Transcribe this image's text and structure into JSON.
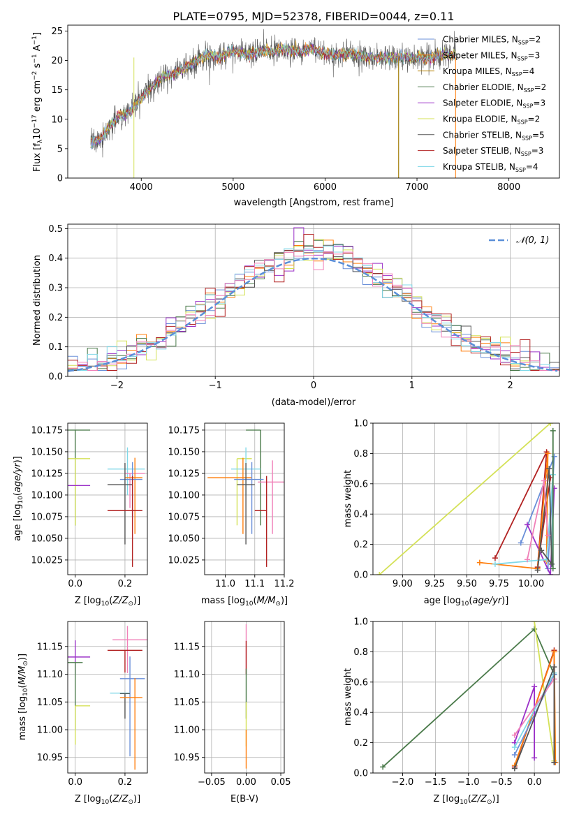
{
  "figure_title": "PLATE=0795, MJD=52378, FIBERID=0044, z=0.11",
  "colors": {
    "Chabrier MILES": "#6a8fd8",
    "Salpeter MILES": "#ff7f0e",
    "Kroupa MILES": "#b8860b",
    "Chabrier ELODIE": "#4a7a4a",
    "Salpeter ELODIE": "#9b30c8",
    "Kroupa ELODIE": "#d4e157",
    "Chabrier STELIB": "#555555",
    "Salpeter STELIB": "#b22222",
    "Kroupa STELIB": "#80d8e8",
    "pink": "#f080b8"
  },
  "chart_data": [
    {
      "id": "spectrum",
      "type": "line",
      "xlabel": "wavelength [Angstrom, rest frame]",
      "ylabel": "Flux [f",
      "xlim": [
        3200,
        8550
      ],
      "ylim": [
        0,
        26
      ],
      "xticks": [
        4000,
        5000,
        6000,
        7000,
        8000
      ],
      "yticks": [
        0,
        5,
        10,
        15,
        20,
        25
      ],
      "grid": false,
      "legend_position": "top-right",
      "continuum": [
        [
          3450,
          6
        ],
        [
          3550,
          6.5
        ],
        [
          3650,
          8.5
        ],
        [
          3750,
          10.5
        ],
        [
          3850,
          11
        ],
        [
          3950,
          12.5
        ],
        [
          4050,
          14.5
        ],
        [
          4150,
          16
        ],
        [
          4250,
          17.5
        ],
        [
          4350,
          17.5
        ],
        [
          4450,
          18.5
        ],
        [
          4550,
          19.5
        ],
        [
          4650,
          20.5
        ],
        [
          4750,
          21
        ],
        [
          4850,
          20.5
        ],
        [
          4950,
          21.5
        ],
        [
          5050,
          21.5
        ],
        [
          5150,
          21
        ],
        [
          5250,
          21.5
        ],
        [
          5350,
          21.5
        ],
        [
          5450,
          21.5
        ],
        [
          5550,
          22
        ],
        [
          5650,
          21.5
        ],
        [
          5750,
          21.5
        ],
        [
          5850,
          22
        ],
        [
          5950,
          21.5
        ],
        [
          6050,
          21
        ],
        [
          6150,
          21
        ],
        [
          6250,
          21
        ],
        [
          6350,
          21
        ],
        [
          6450,
          20.5
        ],
        [
          6550,
          20.5
        ],
        [
          6650,
          20.5
        ],
        [
          6750,
          20.5
        ],
        [
          6850,
          20.5
        ],
        [
          6950,
          20.5
        ],
        [
          7050,
          20.5
        ],
        [
          7150,
          20.5
        ],
        [
          7250,
          21
        ],
        [
          7350,
          21
        ],
        [
          7420,
          21
        ]
      ],
      "series": [
        {
          "name": "Chabrier MILES, N",
          "sub": "SSP",
          "suffix": "=2"
        },
        {
          "name": "Salpeter MILES, N",
          "sub": "SSP",
          "suffix": "=3"
        },
        {
          "name": "Kroupa MILES, N",
          "sub": "SSP",
          "suffix": "=4"
        },
        {
          "name": "Chabrier ELODIE, N",
          "sub": "SSP",
          "suffix": "=2"
        },
        {
          "name": "Salpeter ELODIE, N",
          "sub": "SSP",
          "suffix": "=3"
        },
        {
          "name": "Kroupa ELODIE, N",
          "sub": "SSP",
          "suffix": "=2"
        },
        {
          "name": "Chabrier STELIB, N",
          "sub": "SSP",
          "suffix": "=5"
        },
        {
          "name": "Salpeter STELIB, N",
          "sub": "SSP",
          "suffix": "=3"
        },
        {
          "name": "Kroupa STELIB, N",
          "sub": "SSP",
          "suffix": "=4"
        }
      ],
      "drops": [
        [
          3920,
          "Kroupa ELODIE"
        ],
        [
          6800,
          "Chabrier ELODIE"
        ],
        [
          6800,
          "Kroupa MILES"
        ],
        [
          7420,
          "Salpeter MILES"
        ]
      ]
    },
    {
      "id": "residuals",
      "type": "histogram",
      "xlabel": "(data-model)/error",
      "ylabel": "Normed distribution",
      "xlim": [
        -2.5,
        2.5
      ],
      "ylim": [
        0,
        0.515
      ],
      "xticks": [
        -2,
        -1,
        0,
        1,
        2
      ],
      "yticks": [
        0.0,
        0.1,
        0.2,
        0.3,
        0.4,
        0.5
      ],
      "grid": true,
      "legend": "𝒩(0, 1)",
      "legend_position": "top-right"
    },
    {
      "id": "age-vs-Z",
      "type": "scatter",
      "xlabel": "Z [log",
      "ylabel": "age  [log",
      "xlim": [
        -0.03,
        0.29
      ],
      "ylim": [
        10.008,
        10.183
      ],
      "xticks": [
        0.0,
        0.2
      ],
      "yticks": [
        10.025,
        10.05,
        10.075,
        10.1,
        10.125,
        10.15,
        10.175
      ],
      "grid": true,
      "points": [
        {
          "c": "Chabrier ELODIE",
          "x": 0.0,
          "y": 10.175,
          "xm": 0.03,
          "xp": 0.06,
          "yn": 0.11,
          "yp": 0.0
        },
        {
          "c": "Kroupa ELODIE",
          "x": 0.0,
          "y": 10.142,
          "xm": 0.03,
          "xp": 0.06,
          "yn": 0.077,
          "yp": 0.0
        },
        {
          "c": "Salpeter ELODIE",
          "x": 0.0,
          "y": 10.111,
          "xm": 0.03,
          "xp": 0.06,
          "yn": 0.0,
          "yp": 0.0
        },
        {
          "c": "Kroupa STELIB",
          "x": 0.21,
          "y": 10.13,
          "xm": 0.08,
          "xp": 0.07,
          "yn": 0.03,
          "yp": 0.025
        },
        {
          "c": "pink",
          "x": 0.22,
          "y": 10.125,
          "xm": 0.02,
          "xp": 0.06,
          "yn": 0.04,
          "yp": 0.0
        },
        {
          "c": "Salpeter MILES",
          "x": 0.24,
          "y": 10.12,
          "xm": 0.04,
          "xp": 0.03,
          "yn": 0.065,
          "yp": 0.023
        },
        {
          "c": "Chabrier MILES",
          "x": 0.23,
          "y": 10.118,
          "xm": 0.05,
          "xp": 0.04,
          "yn": 0.043,
          "yp": 0.02
        },
        {
          "c": "Chabrier STELIB",
          "x": 0.2,
          "y": 10.112,
          "xm": 0.07,
          "xp": 0.03,
          "yn": 0.069,
          "yp": 0.025
        },
        {
          "c": "Salpeter STELIB",
          "x": 0.23,
          "y": 10.082,
          "xm": 0.1,
          "xp": 0.04,
          "yn": 0.065,
          "yp": 0.04
        }
      ]
    },
    {
      "id": "age-vs-mass",
      "type": "scatter",
      "xlabel": "mass [log",
      "ylabel": "",
      "xlim": [
        10.93,
        11.2
      ],
      "ylim": [
        10.008,
        10.183
      ],
      "xticks": [
        11.0,
        11.1,
        11.2
      ],
      "yticks": [
        10.025,
        10.05,
        10.075,
        10.1,
        10.125,
        10.15,
        10.175
      ],
      "grid": true,
      "points": [
        {
          "c": "Chabrier ELODIE",
          "x": 11.12,
          "y": 10.175,
          "xm": 0.05,
          "xp": 0.0,
          "yn": 0.11,
          "yp": 0.0
        },
        {
          "c": "Kroupa ELODIE",
          "x": 11.04,
          "y": 10.142,
          "xm": 0.0,
          "xp": 0.05,
          "yn": 0.077,
          "yp": 0.0
        },
        {
          "c": "Salpeter ELODIE",
          "x": 11.13,
          "y": 10.111,
          "xm": 0.0,
          "xp": 0.0,
          "yn": 0.0,
          "yp": 0.0
        },
        {
          "c": "Kroupa STELIB",
          "x": 11.07,
          "y": 10.13,
          "xm": 0.05,
          "xp": 0.05,
          "yn": 0.03,
          "yp": 0.025
        },
        {
          "c": "pink",
          "x": 11.16,
          "y": 10.115,
          "xm": 0.05,
          "xp": 0.05,
          "yn": 0.06,
          "yp": 0.025
        },
        {
          "c": "Salpeter MILES",
          "x": 11.06,
          "y": 10.12,
          "xm": 0.12,
          "xp": 0.03,
          "yn": 0.065,
          "yp": 0.023
        },
        {
          "c": "Chabrier MILES",
          "x": 11.09,
          "y": 10.118,
          "xm": 0.06,
          "xp": 0.04,
          "yn": 0.063,
          "yp": 0.02
        },
        {
          "c": "Chabrier STELIB",
          "x": 11.07,
          "y": 10.112,
          "xm": 0.03,
          "xp": 0.03,
          "yn": 0.069,
          "yp": 0.025
        },
        {
          "c": "Salpeter STELIB",
          "x": 11.14,
          "y": 10.082,
          "xm": 0.04,
          "xp": 0.0,
          "yn": 0.065,
          "yp": 0.04
        }
      ]
    },
    {
      "id": "massweight-vs-age",
      "type": "line",
      "xlabel": "age  [log",
      "ylabel": "mass weight",
      "xlim": [
        8.77,
        10.22
      ],
      "ylim": [
        0,
        1.0
      ],
      "xticks": [
        9.0,
        9.25,
        9.5,
        9.75,
        10.0
      ],
      "yticks": [
        0.0,
        0.2,
        0.4,
        0.6,
        0.8,
        1.0
      ],
      "grid": true,
      "series": [
        {
          "c": "Kroupa ELODIE",
          "x": [
            8.82,
            10.15
          ],
          "y": [
            0.0,
            1.0
          ]
        },
        {
          "c": "Salpeter STELIB",
          "x": [
            9.72,
            10.12,
            10.05,
            10.15
          ],
          "y": [
            0.11,
            0.81,
            0.05,
            0.64
          ]
        },
        {
          "c": "Chabrier MILES",
          "x": [
            9.92,
            10.18,
            10.13
          ],
          "y": [
            0.21,
            0.78,
            0.04
          ]
        },
        {
          "c": "Salpeter ELODIE",
          "x": [
            9.97,
            10.15,
            10.18
          ],
          "y": [
            0.33,
            0.0,
            0.57
          ]
        },
        {
          "c": "Salpeter MILES",
          "x": [
            9.6,
            10.05,
            10.13,
            10.12
          ],
          "y": [
            0.08,
            0.04,
            0.8,
            0.09
          ]
        },
        {
          "c": "Kroupa STELIB",
          "x": [
            9.72,
            10.12,
            10.17,
            10.16
          ],
          "y": [
            0.07,
            0.1,
            0.66,
            0.07
          ]
        },
        {
          "c": "Chabrier ELODIE",
          "x": [
            10.17,
            10.17
          ],
          "y": [
            0.95,
            0.04
          ]
        },
        {
          "c": "Chabrier STELIB",
          "x": [
            10.05,
            10.14,
            10.16,
            10.08
          ],
          "y": [
            0.03,
            0.7,
            0.07,
            0.16
          ]
        },
        {
          "c": "pink",
          "x": [
            9.97,
            10.1,
            10.13
          ],
          "y": [
            0.1,
            0.62,
            0.26
          ]
        }
      ]
    },
    {
      "id": "mass-vs-Z",
      "type": "scatter",
      "xlabel": "Z [log",
      "ylabel": "mass [log",
      "xlim": [
        -0.03,
        0.29
      ],
      "ylim": [
        10.922,
        11.195
      ],
      "xticks": [
        0.0,
        0.2
      ],
      "yticks": [
        10.95,
        11.0,
        11.05,
        11.1,
        11.15
      ],
      "grid": true,
      "points": [
        {
          "c": "Salpeter ELODIE",
          "x": 0.0,
          "y": 11.131,
          "xm": 0.03,
          "xp": 0.06,
          "yn": 0.03,
          "yp": 0.03
        },
        {
          "c": "Chabrier ELODIE",
          "x": 0.0,
          "y": 11.121,
          "xm": 0.03,
          "xp": 0.03,
          "yn": 0.12,
          "yp": 0.0
        },
        {
          "c": "Kroupa ELODIE",
          "x": 0.0,
          "y": 11.043,
          "xm": 0.0,
          "xp": 0.06,
          "yn": 0.07,
          "yp": 0.0
        },
        {
          "c": "pink",
          "x": 0.21,
          "y": 11.162,
          "xm": 0.06,
          "xp": 0.08,
          "yn": 0.06,
          "yp": 0.025
        },
        {
          "c": "Salpeter STELIB",
          "x": 0.2,
          "y": 11.143,
          "xm": 0.07,
          "xp": 0.07,
          "yn": 0.04,
          "yp": 0.0
        },
        {
          "c": "Chabrier MILES",
          "x": 0.22,
          "y": 11.092,
          "xm": 0.04,
          "xp": 0.06,
          "yn": 0.14,
          "yp": 0.04
        },
        {
          "c": "Kroupa STELIB",
          "x": 0.2,
          "y": 11.066,
          "xm": 0.06,
          "xp": 0.02,
          "yn": 0.0,
          "yp": 0.0
        },
        {
          "c": "Chabrier STELIB",
          "x": 0.2,
          "y": 11.065,
          "xm": 0.02,
          "xp": 0.02,
          "yn": 0.045,
          "yp": 0.0
        },
        {
          "c": "Salpeter MILES",
          "x": 0.24,
          "y": 11.058,
          "xm": 0.06,
          "xp": 0.03,
          "yn": 0.13,
          "yp": 0.035
        }
      ]
    },
    {
      "id": "mass-vs-EBV",
      "type": "scatter",
      "xlabel": "E(B-V)",
      "ylabel": "",
      "xlim": [
        -0.06,
        0.055
      ],
      "ylim": [
        10.922,
        11.195
      ],
      "xticks": [
        -0.05,
        0.0,
        0.05
      ],
      "yticks": [
        10.95,
        11.0,
        11.05,
        11.1,
        11.15
      ],
      "grid": true,
      "points": [
        {
          "c": "pink",
          "x": 0.0,
          "y": 11.19,
          "xm": 0,
          "xp": 0,
          "yn": 0.09,
          "yp": 0.0
        },
        {
          "c": "Salpeter STELIB",
          "x": 0.0,
          "y": 11.16,
          "xm": 0,
          "xp": 0,
          "yn": 0.06,
          "yp": 0.0
        },
        {
          "c": "Chabrier ELODIE",
          "x": 0.0,
          "y": 11.11,
          "xm": 0,
          "xp": 0,
          "yn": 0.09,
          "yp": 0.0
        },
        {
          "c": "Kroupa ELODIE",
          "x": 0.0,
          "y": 11.05,
          "xm": 0,
          "xp": 0,
          "yn": 0.08,
          "yp": 0.0
        },
        {
          "c": "Salpeter MILES",
          "x": 0.0,
          "y": 11.0,
          "xm": 0,
          "xp": 0,
          "yn": 0.07,
          "yp": 0.0
        }
      ]
    },
    {
      "id": "massweight-vs-Z",
      "type": "line",
      "xlabel": "Z [log",
      "ylabel": "mass weight",
      "xlim": [
        -2.45,
        0.38
      ],
      "ylim": [
        0,
        1.0
      ],
      "xticks": [
        -2.0,
        -1.5,
        -1.0,
        -0.5,
        0.0
      ],
      "yticks": [
        0.0,
        0.2,
        0.4,
        0.6,
        0.8,
        1.0
      ],
      "grid": true,
      "series": [
        {
          "c": "Chabrier ELODIE",
          "x": [
            -2.3,
            0.0,
            0.3
          ],
          "y": [
            0.04,
            0.95,
            0.65
          ]
        },
        {
          "c": "Kroupa ELODIE",
          "x": [
            0.0,
            0.3,
            0.3
          ],
          "y": [
            1.0,
            0.08,
            0.07
          ]
        },
        {
          "c": "Salpeter STELIB",
          "x": [
            -0.3,
            0.3,
            0.3
          ],
          "y": [
            0.04,
            0.81,
            0.07
          ]
        },
        {
          "c": "Salpeter MILES",
          "x": [
            -0.3,
            0.3,
            0.32
          ],
          "y": [
            0.05,
            0.8,
            0.07
          ]
        },
        {
          "c": "Chabrier MILES",
          "x": [
            -0.3,
            0.3,
            0.3
          ],
          "y": [
            0.12,
            0.65,
            0.07
          ]
        },
        {
          "c": "Salpeter ELODIE",
          "x": [
            -0.3,
            0.0,
            0.0
          ],
          "y": [
            0.2,
            0.57,
            0.1
          ]
        },
        {
          "c": "Kroupa STELIB",
          "x": [
            -0.3,
            0.3
          ],
          "y": [
            0.17,
            0.66
          ]
        },
        {
          "c": "pink",
          "x": [
            -0.3,
            0.3
          ],
          "y": [
            0.25,
            0.62
          ]
        },
        {
          "c": "Chabrier STELIB",
          "x": [
            -0.3,
            0.3,
            0.3
          ],
          "y": [
            0.03,
            0.7,
            0.07
          ]
        }
      ]
    }
  ]
}
